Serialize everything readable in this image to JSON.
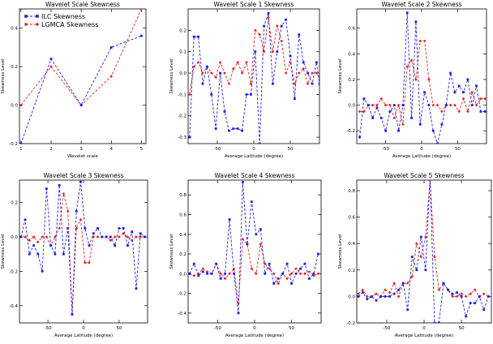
{
  "figure": {
    "colors": {
      "ilc": "#1f1fe6",
      "lgmca": "#e61f1f",
      "axis": "#000000"
    }
  },
  "legend": {
    "ilc_label": "ILC Skewness",
    "lgmca_label": "LGMCA Skewness"
  },
  "chart_data": [
    {
      "type": "line",
      "title": "Wavelet Scale Skewness",
      "xlabel": "Wavelet scale",
      "ylabel": "Skewness Level",
      "xlim": [
        0.95,
        5.15
      ],
      "ylim": [
        -0.2,
        0.5
      ],
      "xticks": [
        1,
        2,
        3,
        4,
        5
      ],
      "yticks": [
        -0.2,
        0.0,
        0.2,
        0.4
      ],
      "x": [
        1,
        2,
        3,
        4,
        5
      ],
      "series": [
        {
          "name": "ILC Skewness",
          "values": [
            -0.2,
            0.24,
            0.0,
            0.3,
            0.36
          ]
        },
        {
          "name": "LGMCA Skewness",
          "values": [
            0.0,
            0.2,
            0.0,
            0.15,
            0.5
          ]
        }
      ]
    },
    {
      "type": "line",
      "title": "Wavelet Scale 1 Skewness",
      "xlabel": "Average Latitude (degree)",
      "ylabel": "Skewness Level",
      "xlim": [
        -90,
        90
      ],
      "ylim": [
        -0.33,
        0.3
      ],
      "xticks": [
        -50,
        0,
        50
      ],
      "yticks": [
        -0.3,
        -0.2,
        -0.1,
        0.0,
        0.1,
        0.2
      ],
      "x": [
        -88,
        -82,
        -76,
        -70,
        -64,
        -58,
        -52,
        -46,
        -40,
        -34,
        -28,
        -22,
        -16,
        -10,
        -4,
        2,
        8,
        14,
        20,
        26,
        32,
        38,
        44,
        50,
        56,
        62,
        68,
        74,
        80,
        86,
        90
      ],
      "series": [
        {
          "name": "ILC Skewness",
          "values": [
            -0.3,
            0.17,
            0.17,
            -0.05,
            0.03,
            -0.1,
            -0.26,
            0.0,
            -0.18,
            -0.27,
            -0.26,
            -0.26,
            -0.27,
            -0.1,
            -0.1,
            0.1,
            -0.33,
            0.22,
            0.28,
            -0.05,
            0.1,
            0.22,
            0.25,
            0.08,
            -0.12,
            0.18,
            0.05,
            0.0,
            -0.05,
            0.05,
            -0.05
          ]
        },
        {
          "name": "LGMCA Skewness",
          "values": [
            -0.1,
            0.03,
            0.05,
            0.0,
            0.03,
            0.0,
            -0.02,
            0.05,
            0.0,
            -0.05,
            0.02,
            0.05,
            0.0,
            0.05,
            -0.05,
            0.2,
            0.18,
            0.1,
            0.26,
            0.1,
            0.22,
            0.15,
            0.0,
            0.05,
            -0.05,
            0.0,
            0.02,
            -0.05,
            0.0,
            0.0,
            -0.02
          ]
        }
      ]
    },
    {
      "type": "line",
      "title": "Wavelet Scale 2 Skewness",
      "xlabel": "Average Latitude (degree)",
      "ylabel": "Skewness Level",
      "xlim": [
        -90,
        90
      ],
      "ylim": [
        -0.3,
        0.75
      ],
      "xticks": [
        -50,
        0,
        50
      ],
      "yticks": [
        -0.2,
        0.0,
        0.2,
        0.4,
        0.6
      ],
      "x": [
        -86,
        -80,
        -74,
        -68,
        -62,
        -56,
        -50,
        -44,
        -38,
        -32,
        -26,
        -20,
        -14,
        -8,
        -2,
        4,
        10,
        16,
        22,
        28,
        34,
        40,
        46,
        52,
        58,
        64,
        70,
        76,
        82,
        88
      ],
      "series": [
        {
          "name": "ILC Skewness",
          "values": [
            -0.25,
            0.05,
            0.0,
            -0.1,
            -0.02,
            -0.1,
            -0.2,
            -0.05,
            0.0,
            -0.2,
            0.0,
            0.72,
            -0.1,
            0.65,
            -0.15,
            0.1,
            0.0,
            -0.2,
            -0.3,
            -0.15,
            0.0,
            0.25,
            0.1,
            0.15,
            0.1,
            0.2,
            0.0,
            0.15,
            -0.05,
            -0.05
          ]
        },
        {
          "name": "LGMCA Skewness",
          "values": [
            -0.05,
            -0.05,
            0.0,
            0.0,
            0.0,
            0.05,
            0.0,
            0.0,
            -0.1,
            0.0,
            -0.15,
            0.3,
            0.35,
            0.2,
            0.5,
            0.5,
            0.2,
            0.0,
            0.0,
            -0.05,
            0.0,
            0.0,
            0.0,
            -0.05,
            0.05,
            -0.05,
            0.1,
            0.0,
            0.05,
            0.05
          ]
        }
      ]
    },
    {
      "type": "line",
      "title": "Wavelet Scale 3 Skewness",
      "xlabel": "Average Latitude (degree)",
      "ylabel": "Skewness Level",
      "xlim": [
        -90,
        90
      ],
      "ylim": [
        -0.5,
        0.33
      ],
      "xticks": [
        -50,
        0,
        50
      ],
      "yticks": [
        -0.4,
        -0.2,
        0.0,
        0.2
      ],
      "x": [
        -88,
        -82,
        -76,
        -70,
        -64,
        -58,
        -52,
        -46,
        -40,
        -34,
        -28,
        -22,
        -16,
        -10,
        -4,
        2,
        8,
        14,
        20,
        26,
        32,
        38,
        44,
        50,
        56,
        62,
        68,
        74,
        80,
        86
      ],
      "series": [
        {
          "name": "ILC Skewness",
          "values": [
            0.0,
            0.1,
            -0.1,
            -0.05,
            -0.1,
            -0.2,
            0.28,
            -0.05,
            -0.1,
            0.3,
            -0.1,
            0.05,
            -0.45,
            0.15,
            0.32,
            0.05,
            -0.05,
            0.02,
            0.05,
            0.0,
            0.0,
            0.0,
            -0.05,
            0.05,
            0.05,
            -0.05,
            0.03,
            -0.3,
            0.02,
            0.0
          ]
        },
        {
          "name": "LGMCA Skewness",
          "values": [
            0.0,
            0.0,
            -0.02,
            0.0,
            -0.03,
            0.0,
            0.0,
            -0.05,
            0.0,
            0.05,
            0.25,
            0.15,
            -0.45,
            0.05,
            0.1,
            -0.15,
            -0.15,
            0.0,
            0.0,
            0.0,
            0.0,
            -0.02,
            0.0,
            0.0,
            0.02,
            0.0,
            -0.02,
            0.0,
            0.0,
            0.0
          ]
        }
      ]
    },
    {
      "type": "line",
      "title": "Wavelet Scale 4 Skewness",
      "xlabel": "Average Latitude (degree)",
      "ylabel": "Skewness Level",
      "xlim": [
        -90,
        90
      ],
      "ylim": [
        -0.5,
        0.95
      ],
      "xticks": [
        -50,
        0,
        50
      ],
      "yticks": [
        -0.4,
        -0.2,
        0.0,
        0.2,
        0.4,
        0.6,
        0.8
      ],
      "x": [
        -88,
        -82,
        -76,
        -70,
        -64,
        -58,
        -52,
        -46,
        -40,
        -34,
        -28,
        -22,
        -16,
        -10,
        -4,
        2,
        8,
        14,
        20,
        26,
        32,
        38,
        44,
        50,
        56,
        62,
        68,
        74,
        80,
        86
      ],
      "series": [
        {
          "name": "ILC Skewness",
          "values": [
            0.0,
            0.1,
            -0.02,
            0.02,
            0.0,
            0.0,
            0.1,
            -0.05,
            0.0,
            0.55,
            0.0,
            -0.4,
            0.93,
            0.3,
            0.73,
            0.4,
            0.45,
            0.0,
            0.1,
            -0.1,
            -0.05,
            0.0,
            0.1,
            -0.1,
            0.0,
            0.05,
            0.1,
            -0.05,
            0.0,
            0.2
          ]
        },
        {
          "name": "LGMCA Skewness",
          "values": [
            0.0,
            -0.02,
            0.0,
            0.05,
            0.02,
            0.0,
            0.1,
            0.0,
            -0.05,
            0.0,
            0.05,
            -0.3,
            0.35,
            0.3,
            0.05,
            0.0,
            0.3,
            0.1,
            0.05,
            0.0,
            -0.1,
            0.0,
            -0.05,
            0.0,
            0.05,
            0.0,
            0.0,
            0.02,
            -0.02,
            0.0
          ]
        }
      ]
    },
    {
      "type": "line",
      "title": "Wavelet Scale 5 Skewness",
      "xlabel": "Average Latitude (degree)",
      "ylabel": "Skewness Level",
      "xlim": [
        -90,
        90
      ],
      "ylim": [
        -0.2,
        0.88
      ],
      "xticks": [
        -50,
        0,
        50
      ],
      "yticks": [
        -0.2,
        0.0,
        0.2,
        0.4,
        0.6,
        0.8
      ],
      "x": [
        -88,
        -82,
        -76,
        -70,
        -64,
        -58,
        -52,
        -46,
        -40,
        -34,
        -28,
        -22,
        -16,
        -10,
        -4,
        2,
        8,
        14,
        20,
        26,
        32,
        38,
        44,
        50,
        56,
        62,
        68,
        74,
        80,
        86
      ],
      "series": [
        {
          "name": "ILC Skewness",
          "values": [
            0.0,
            0.03,
            -0.02,
            0.0,
            -0.03,
            0.0,
            0.0,
            0.0,
            0.02,
            0.05,
            0.1,
            -0.1,
            0.3,
            0.2,
            0.45,
            0.2,
            0.9,
            -0.2,
            -0.2,
            0.1,
            0.05,
            0.02,
            0.03,
            0.0,
            -0.15,
            -0.05,
            -0.05,
            0.0,
            -0.1,
            0.0
          ]
        },
        {
          "name": "LGMCA Skewness",
          "values": [
            0.02,
            0.05,
            0.0,
            0.0,
            0.02,
            0.0,
            0.05,
            0.03,
            0.1,
            0.0,
            0.1,
            0.1,
            0.15,
            0.4,
            0.3,
            0.45,
            0.88,
            0.3,
            0.05,
            0.1,
            0.05,
            0.0,
            0.0,
            0.02,
            0.0,
            0.02,
            0.05,
            0.0,
            0.02,
            0.0
          ]
        }
      ]
    }
  ]
}
